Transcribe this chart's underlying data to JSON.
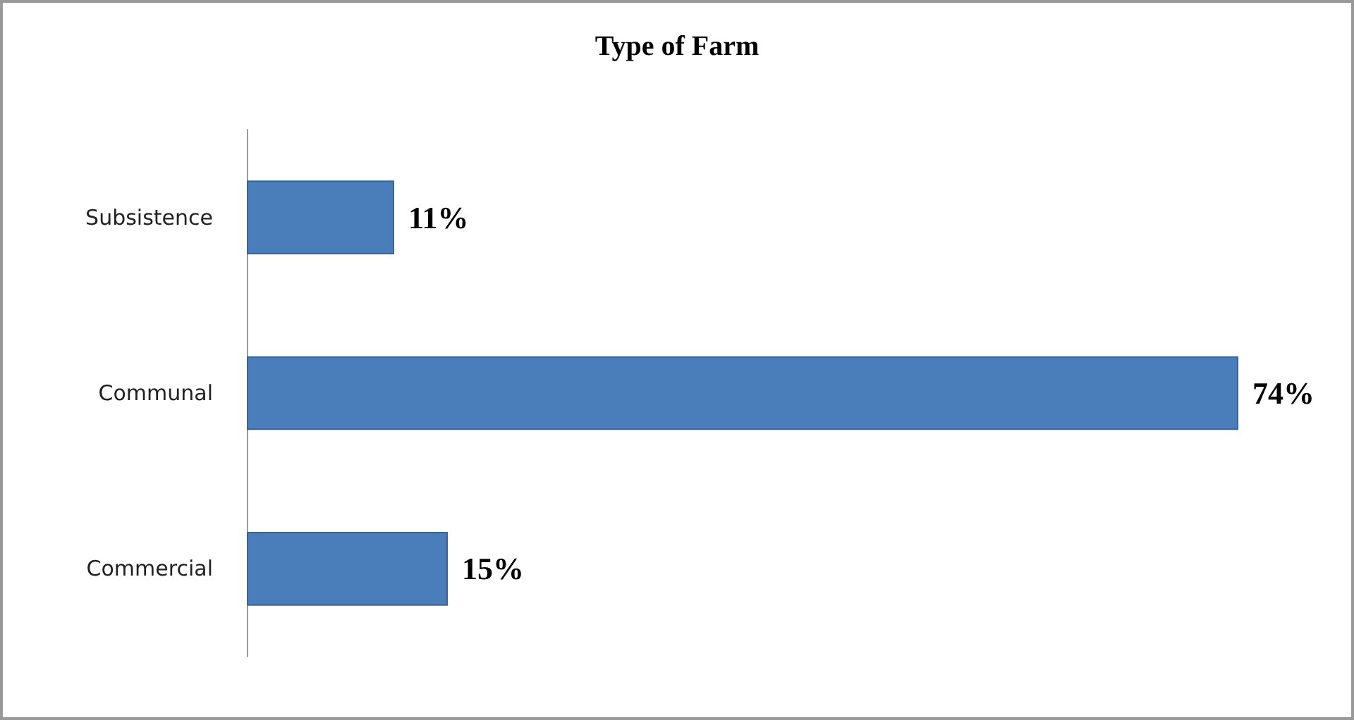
{
  "chart_data": {
    "type": "bar",
    "orientation": "horizontal",
    "title": "Type of Farm",
    "categories": [
      "Subsistence",
      "Communal",
      "Commercial"
    ],
    "values": [
      11,
      74,
      15
    ],
    "value_labels": [
      "11%",
      "74%",
      "15%"
    ],
    "color": "#4a7ebb"
  }
}
